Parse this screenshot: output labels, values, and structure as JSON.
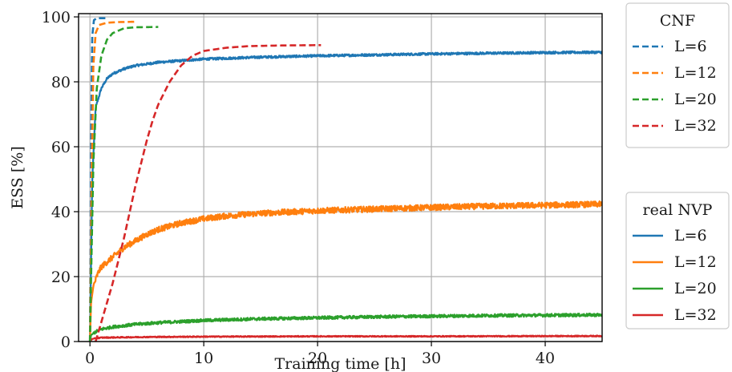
{
  "chart_data": {
    "type": "line",
    "xlabel": "Training time [h]",
    "ylabel": "ESS [%]",
    "xlim": [
      -1,
      45
    ],
    "ylim": [
      0,
      101
    ],
    "xticks": [
      0,
      10,
      20,
      30,
      40
    ],
    "yticks": [
      0,
      20,
      40,
      60,
      80,
      100
    ],
    "grid": true,
    "legends": [
      {
        "title": "CNF",
        "placement": "top-right-outside",
        "entries": [
          {
            "label": "L=6",
            "color": "#1f77b4",
            "style": "dashed"
          },
          {
            "label": "L=12",
            "color": "#ff7f0e",
            "style": "dashed"
          },
          {
            "label": "L=20",
            "color": "#2ca02c",
            "style": "dashed"
          },
          {
            "label": "L=32",
            "color": "#d62728",
            "style": "dashed"
          }
        ]
      },
      {
        "title": "real NVP",
        "placement": "right-outside",
        "entries": [
          {
            "label": "L=6",
            "color": "#1f77b4",
            "style": "solid"
          },
          {
            "label": "L=12",
            "color": "#ff7f0e",
            "style": "solid"
          },
          {
            "label": "L=20",
            "color": "#2ca02c",
            "style": "solid"
          },
          {
            "label": "L=32",
            "color": "#d62728",
            "style": "solid"
          }
        ]
      }
    ],
    "series": [
      {
        "group": "CNF",
        "label": "L=6",
        "color": "#1f77b4",
        "style": "dashed",
        "points": [
          [
            0,
            0
          ],
          [
            0.1,
            60
          ],
          [
            0.2,
            94
          ],
          [
            0.35,
            99
          ],
          [
            0.6,
            99.6
          ],
          [
            1.5,
            99.6
          ]
        ]
      },
      {
        "group": "CNF",
        "label": "L=12",
        "color": "#ff7f0e",
        "style": "dashed",
        "points": [
          [
            0,
            0
          ],
          [
            0.15,
            50
          ],
          [
            0.3,
            85
          ],
          [
            0.5,
            95
          ],
          [
            0.8,
            97.5
          ],
          [
            1.5,
            98.2
          ],
          [
            2.5,
            98.4
          ],
          [
            4,
            98.5
          ]
        ]
      },
      {
        "group": "CNF",
        "label": "L=20",
        "color": "#2ca02c",
        "style": "dashed",
        "points": [
          [
            0,
            0
          ],
          [
            0.1,
            20
          ],
          [
            0.3,
            55
          ],
          [
            0.6,
            78
          ],
          [
            1,
            88
          ],
          [
            1.5,
            93
          ],
          [
            2,
            95
          ],
          [
            3,
            96.5
          ],
          [
            4,
            96.8
          ],
          [
            6,
            96.9
          ]
        ]
      },
      {
        "group": "CNF",
        "label": "L=32",
        "color": "#d62728",
        "style": "dashed",
        "points": [
          [
            0.5,
            0
          ],
          [
            1,
            6
          ],
          [
            1.5,
            12
          ],
          [
            2,
            18
          ],
          [
            2.5,
            25
          ],
          [
            3,
            32
          ],
          [
            3.5,
            40
          ],
          [
            4,
            48
          ],
          [
            4.5,
            55
          ],
          [
            5,
            62
          ],
          [
            5.5,
            68
          ],
          [
            6,
            73
          ],
          [
            7,
            80
          ],
          [
            8,
            85
          ],
          [
            9,
            88
          ],
          [
            10,
            89.5
          ],
          [
            12,
            90.5
          ],
          [
            14,
            91
          ],
          [
            17,
            91.2
          ],
          [
            20.3,
            91.3
          ]
        ]
      },
      {
        "group": "real NVP",
        "label": "L=6",
        "color": "#1f77b4",
        "style": "solid",
        "noisy": true,
        "points": [
          [
            0,
            0
          ],
          [
            0.2,
            50
          ],
          [
            0.5,
            72
          ],
          [
            1,
            78
          ],
          [
            1.5,
            81
          ],
          [
            2,
            82.5
          ],
          [
            3,
            84
          ],
          [
            4,
            85
          ],
          [
            6,
            86
          ],
          [
            8,
            86.5
          ],
          [
            10,
            87
          ],
          [
            15,
            87.6
          ],
          [
            20,
            88
          ],
          [
            25,
            88.3
          ],
          [
            30,
            88.6
          ],
          [
            35,
            88.8
          ],
          [
            40,
            89
          ],
          [
            45,
            89.1
          ]
        ]
      },
      {
        "group": "real NVP",
        "label": "L=12",
        "color": "#ff7f0e",
        "style": "solid",
        "noisy": true,
        "points": [
          [
            0,
            0
          ],
          [
            0.1,
            12
          ],
          [
            0.3,
            17
          ],
          [
            0.7,
            21
          ],
          [
            1,
            23
          ],
          [
            2,
            26
          ],
          [
            3,
            29
          ],
          [
            4,
            31
          ],
          [
            5,
            33
          ],
          [
            6,
            34.5
          ],
          [
            8,
            36.5
          ],
          [
            10,
            37.8
          ],
          [
            12,
            38.7
          ],
          [
            15,
            39.5
          ],
          [
            20,
            40.3
          ],
          [
            25,
            40.8
          ],
          [
            30,
            41.3
          ],
          [
            35,
            41.7
          ],
          [
            40,
            42
          ],
          [
            45,
            42.3
          ]
        ]
      },
      {
        "group": "real NVP",
        "label": "L=20",
        "color": "#2ca02c",
        "style": "solid",
        "noisy": true,
        "points": [
          [
            0,
            0
          ],
          [
            0.1,
            2
          ],
          [
            0.5,
            3
          ],
          [
            1,
            3.8
          ],
          [
            2,
            4.5
          ],
          [
            4,
            5.3
          ],
          [
            6,
            5.8
          ],
          [
            10,
            6.5
          ],
          [
            15,
            7
          ],
          [
            20,
            7.3
          ],
          [
            25,
            7.6
          ],
          [
            30,
            7.8
          ],
          [
            35,
            8
          ],
          [
            40,
            8.1
          ],
          [
            45,
            8.2
          ]
        ]
      },
      {
        "group": "real NVP",
        "label": "L=32",
        "color": "#d62728",
        "style": "solid",
        "noisy": true,
        "points": [
          [
            0,
            0
          ],
          [
            0.2,
            0.8
          ],
          [
            1,
            1.2
          ],
          [
            5,
            1.4
          ],
          [
            10,
            1.5
          ],
          [
            20,
            1.6
          ],
          [
            30,
            1.6
          ],
          [
            45,
            1.7
          ]
        ]
      }
    ]
  }
}
